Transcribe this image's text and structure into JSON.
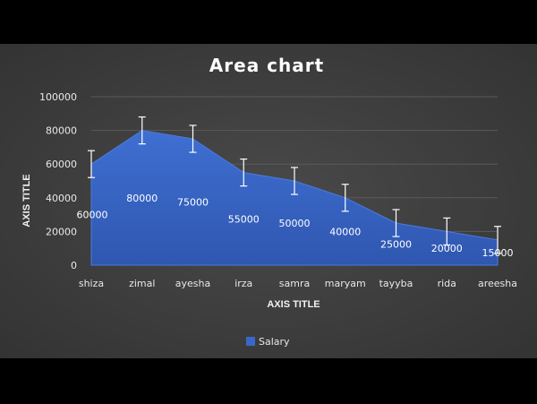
{
  "chart_data": {
    "type": "area",
    "title": "Area chart",
    "xlabel": "AXIS TITLE",
    "ylabel": "AXIS TITLE",
    "categories": [
      "shiza",
      "zimal",
      "ayesha",
      "irza",
      "samra",
      "maryam",
      "tayyba",
      "rida",
      "areesha"
    ],
    "series": [
      {
        "name": "Salary",
        "values": [
          60000,
          80000,
          75000,
          55000,
          50000,
          40000,
          25000,
          20000,
          15000
        ],
        "color": "#3a67c7"
      }
    ],
    "data_labels": [
      "60000",
      "80000",
      "75000",
      "55000",
      "50000",
      "40000",
      "25000",
      "20000",
      "15000"
    ],
    "error_bars": 8000,
    "ylim": [
      0,
      100000
    ],
    "yticks": [
      0,
      20000,
      40000,
      60000,
      80000,
      100000
    ],
    "ytick_labels": [
      "0",
      "20000",
      "40000",
      "60000",
      "80000",
      "100000"
    ],
    "grid": true,
    "legend_position": "bottom"
  }
}
